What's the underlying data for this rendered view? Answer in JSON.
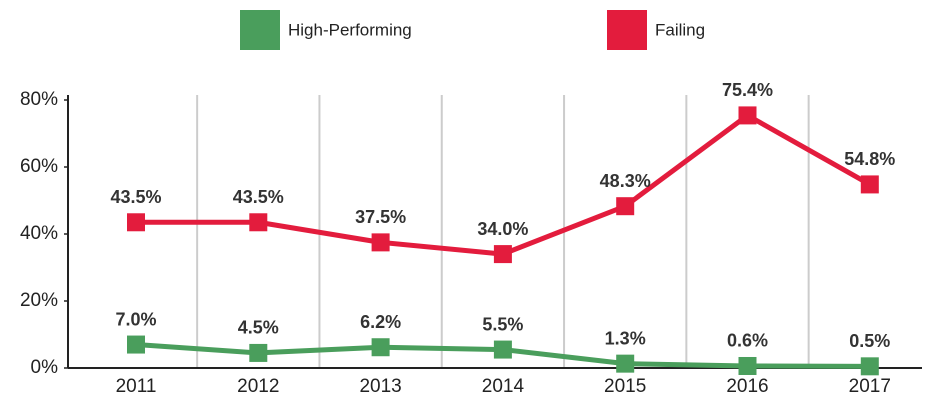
{
  "chart_data": {
    "type": "line",
    "categories": [
      "2011",
      "2012",
      "2013",
      "2014",
      "2015",
      "2016",
      "2017"
    ],
    "series": [
      {
        "name": "High-Performing",
        "color": "#4a9e5c",
        "values": [
          7.0,
          4.5,
          6.2,
          5.5,
          1.3,
          0.6,
          0.5
        ],
        "value_labels": [
          "7.0%",
          "4.5%",
          "6.2%",
          "5.5%",
          "1.3%",
          "0.6%",
          "0.5%"
        ]
      },
      {
        "name": "Failing",
        "color": "#e31c3d",
        "values": [
          43.5,
          43.5,
          37.5,
          34.0,
          48.3,
          75.4,
          54.8
        ],
        "value_labels": [
          "43.5%",
          "43.5%",
          "37.5%",
          "34.0%",
          "48.3%",
          "75.4%",
          "54.8%"
        ]
      }
    ],
    "ylim": [
      0,
      80
    ],
    "yticks": [
      {
        "value": 0,
        "label": "0%"
      },
      {
        "value": 20,
        "label": "20%"
      },
      {
        "value": 40,
        "label": "40%"
      },
      {
        "value": 60,
        "label": "60%"
      },
      {
        "value": 80,
        "label": "80%"
      }
    ],
    "grid": true,
    "legend": "top"
  }
}
